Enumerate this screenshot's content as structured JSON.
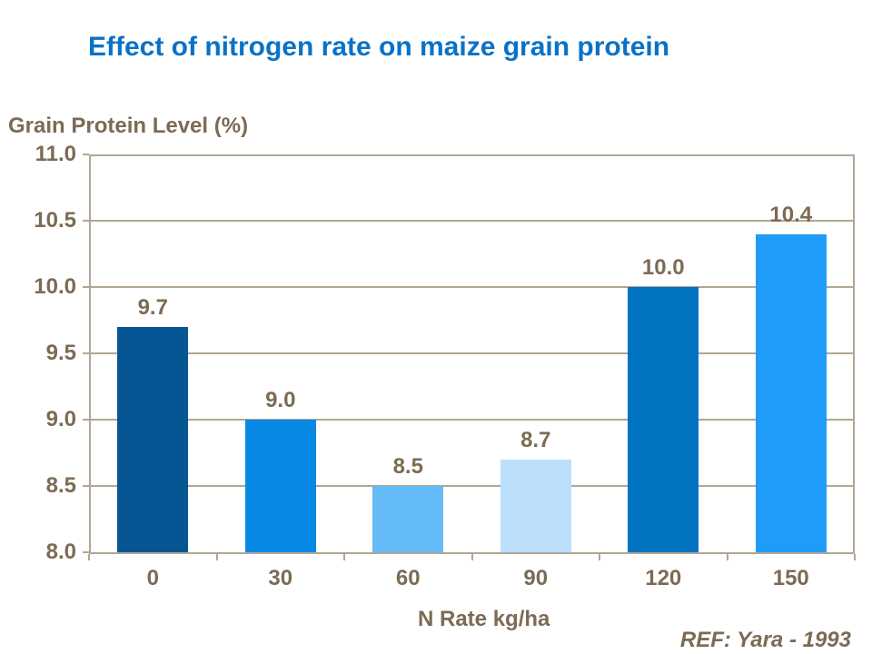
{
  "header": {
    "title": "Effect of nitrogen rate on maize grain protein"
  },
  "footer": {
    "reference": "REF: Yara - 1993"
  },
  "colors": {
    "title_blue": "#0A72C6",
    "label_brown": "#7C6B54",
    "axis_tan": "#B2A694",
    "background": "#FFFFFF"
  },
  "chart_data": {
    "type": "bar",
    "title": "Effect of nitrogen rate on maize grain protein",
    "categories": [
      "0",
      "30",
      "60",
      "90",
      "120",
      "150"
    ],
    "values": [
      9.7,
      9.0,
      8.5,
      8.7,
      10.0,
      10.4
    ],
    "value_labels": [
      "9.7",
      "9.0",
      "8.5",
      "8.7",
      "10.0",
      "10.4"
    ],
    "bar_colors": [
      "#055692",
      "#0989E6",
      "#65BAF8",
      "#BCDFFB",
      "#0273C1",
      "#1F9CF8"
    ],
    "xlabel": "N Rate kg/ha",
    "ylabel": "Grain Protein Level (%)",
    "ylim": [
      8.0,
      11.0
    ],
    "ytick_step": 0.5,
    "ytick_labels": [
      "11.0",
      "10.5",
      "10.0",
      "9.5",
      "9.0",
      "8.5",
      "8.0"
    ],
    "grid": true,
    "legend": "none"
  }
}
